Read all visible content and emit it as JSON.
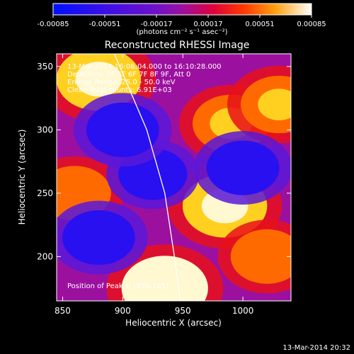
{
  "chart_data": {
    "type": "heatmap",
    "title": "Reconstructed RHESSI Image",
    "xlabel": "Heliocentric X (arcsec)",
    "ylabel": "Heliocentric Y (arcsec)",
    "xlim": [
      845,
      1040
    ],
    "ylim": [
      165,
      360
    ],
    "x_ticks": [
      "850",
      "900",
      "950",
      "1000"
    ],
    "x_tick_values": [
      850,
      900,
      950,
      1000
    ],
    "y_ticks": [
      "200",
      "250",
      "300",
      "350"
    ],
    "y_tick_values": [
      200,
      250,
      300,
      350
    ],
    "colorbar": {
      "ticks": [
        "-0.00085",
        "-0.00051",
        "-0.00017",
        "0.00017",
        "0.00051",
        "0.00085"
      ],
      "tick_values": [
        -0.00085,
        -0.00051,
        -0.00017,
        0.00017,
        0.00051,
        0.00085
      ],
      "unit_label": "(photons cm⁻² s⁻¹ asec⁻²)",
      "range": [
        -0.00085,
        0.00085
      ]
    },
    "annotations": [
      "13-Mar-2014 16:08:04.000 to 16:10:28.000",
      "Detectors: 3F 5F 6F 7F 8F 9F, Att 0",
      "Energy Range: 25.0 - 50.0 keV",
      "Clean     Total counts: 6.91E+03"
    ],
    "peak_label": "Position of Peak = [938,165]",
    "limb_curve": [
      [
        893,
        360
      ],
      [
        920,
        300
      ],
      [
        935,
        250
      ],
      [
        943,
        200
      ],
      [
        948,
        165
      ]
    ],
    "features": [
      {
        "x": 880,
        "y": 340,
        "level": 0.0008
      },
      {
        "x": 990,
        "y": 305,
        "level": 0.0006
      },
      {
        "x": 1030,
        "y": 320,
        "level": 0.0006
      },
      {
        "x": 985,
        "y": 240,
        "level": 0.0008
      },
      {
        "x": 935,
        "y": 175,
        "level": 0.00085
      },
      {
        "x": 860,
        "y": 250,
        "level": 0.0005
      },
      {
        "x": 1020,
        "y": 200,
        "level": 0.0005
      },
      {
        "x": 925,
        "y": 265,
        "level": -0.0004
      },
      {
        "x": 900,
        "y": 300,
        "level": -0.0005
      },
      {
        "x": 1000,
        "y": 270,
        "level": -0.0005
      },
      {
        "x": 880,
        "y": 215,
        "level": -0.0005
      }
    ]
  },
  "footer": {
    "timestamp": "13-Mar-2014 20:32"
  }
}
